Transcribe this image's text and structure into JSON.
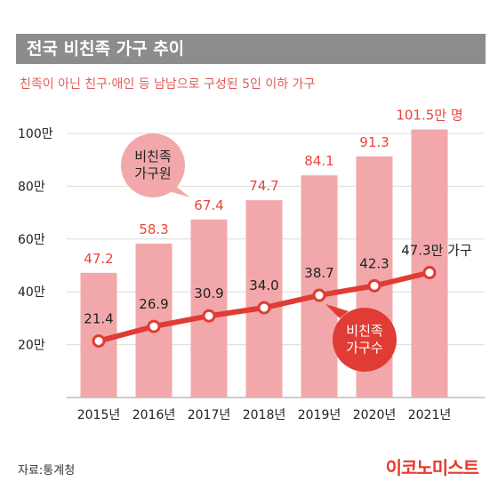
{
  "header": {
    "title": "전국 비친족 가구 추이",
    "subtitle": "친족이 아닌 친구·애인 등 남남으로 구성된 5인 이하 가구"
  },
  "source": "자료:통계청",
  "logo": "이코노미스트",
  "colors": {
    "bar": "#f2a8aa",
    "bar_label": "#e8453c",
    "line": "#e03c35",
    "point_fill": "#ffffff",
    "title_bg": "#8c8c8c",
    "callout_bar": "#f2a8aa",
    "callout_line": "#e03c35"
  },
  "callouts": {
    "members": [
      "비친족",
      "가구원"
    ],
    "households": [
      "비친족",
      "가구수"
    ]
  },
  "chart_data": {
    "type": "bar",
    "categories": [
      "2015년",
      "2016년",
      "2017년",
      "2018년",
      "2019년",
      "2020년",
      "2021년"
    ],
    "ylim": [
      0,
      100
    ],
    "yticks": [
      20,
      40,
      60,
      80,
      100
    ],
    "ytick_labels": [
      "20만",
      "40만",
      "60만",
      "80만",
      "100만"
    ],
    "grid": true,
    "series": [
      {
        "name": "비친족 가구원",
        "type": "bar",
        "values": [
          47.2,
          58.3,
          67.4,
          74.7,
          84.1,
          91.3,
          101.5
        ],
        "labels": [
          "47.2",
          "58.3",
          "67.4",
          "74.7",
          "84.1",
          "91.3",
          "101.5만 명"
        ]
      },
      {
        "name": "비친족 가구수",
        "type": "line",
        "values": [
          21.4,
          26.9,
          30.9,
          34.0,
          38.7,
          42.3,
          47.3
        ],
        "labels": [
          "21.4",
          "26.9",
          "30.9",
          "34.0",
          "38.7",
          "42.3",
          "47.3만 가구"
        ]
      }
    ]
  }
}
